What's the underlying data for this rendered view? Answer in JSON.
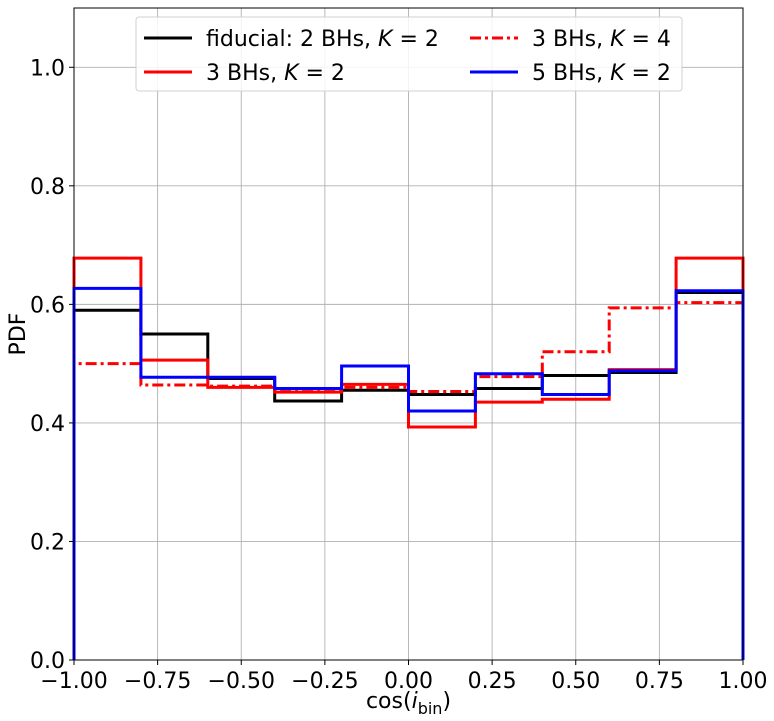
{
  "chart_data": {
    "type": "line",
    "style": "step-histogram",
    "xlabel": "cos(i_bin)",
    "xlabel_main": "cos(",
    "xlabel_italic": "i",
    "xlabel_sub": "bin",
    "xlabel_close": ")",
    "ylabel": "PDF",
    "xlim": [
      -1.0,
      1.0
    ],
    "ylim": [
      0.0,
      1.1
    ],
    "grid": true,
    "legend_position": "top-center",
    "legend_columns": 2,
    "x_ticks": [
      "−1.00",
      "−0.75",
      "−0.50",
      "−0.25",
      "0.00",
      "0.25",
      "0.50",
      "0.75",
      "1.00"
    ],
    "x_tick_values": [
      -1.0,
      -0.75,
      -0.5,
      -0.25,
      0.0,
      0.25,
      0.5,
      0.75,
      1.0
    ],
    "y_ticks": [
      "0.0",
      "0.2",
      "0.4",
      "0.6",
      "0.8",
      "1.0"
    ],
    "y_tick_values": [
      0.0,
      0.2,
      0.4,
      0.6,
      0.8,
      1.0
    ],
    "bin_edges": [
      -1.0,
      -0.8,
      -0.6,
      -0.4,
      -0.2,
      0.0,
      0.2,
      0.4,
      0.6,
      0.8,
      1.0
    ],
    "series": [
      {
        "name": "fiducial: 2 BHs, K = 2",
        "legend_prefix": "fiducial: 2 BHs, ",
        "color": "#000000",
        "dash": "solid",
        "values": [
          0.59,
          0.55,
          0.475,
          0.437,
          0.455,
          0.448,
          0.458,
          0.48,
          0.485,
          0.62
        ]
      },
      {
        "name": "3 BHs, K = 2",
        "legend_prefix": "3 BHs, ",
        "color": "#ff0000",
        "dash": "solid",
        "values": [
          0.678,
          0.506,
          0.46,
          0.452,
          0.465,
          0.393,
          0.435,
          0.44,
          0.49,
          0.678
        ]
      },
      {
        "name": "3 BHs, K = 4",
        "legend_prefix": "3 BHs, ",
        "color": "#ff0000",
        "dash": "dashdot",
        "values": [
          0.5,
          0.464,
          0.462,
          0.457,
          0.46,
          0.453,
          0.478,
          0.52,
          0.594,
          0.603
        ]
      },
      {
        "name": "5 BHs, K = 2",
        "legend_prefix": "5 BHs, ",
        "color": "#0000ff",
        "dash": "solid",
        "values": [
          0.627,
          0.477,
          0.477,
          0.458,
          0.496,
          0.42,
          0.483,
          0.448,
          0.488,
          0.623
        ]
      }
    ],
    "legend_k_symbol": "K",
    "legend_k_eq": "= 2",
    "legend_k_eq4": "= 4"
  }
}
